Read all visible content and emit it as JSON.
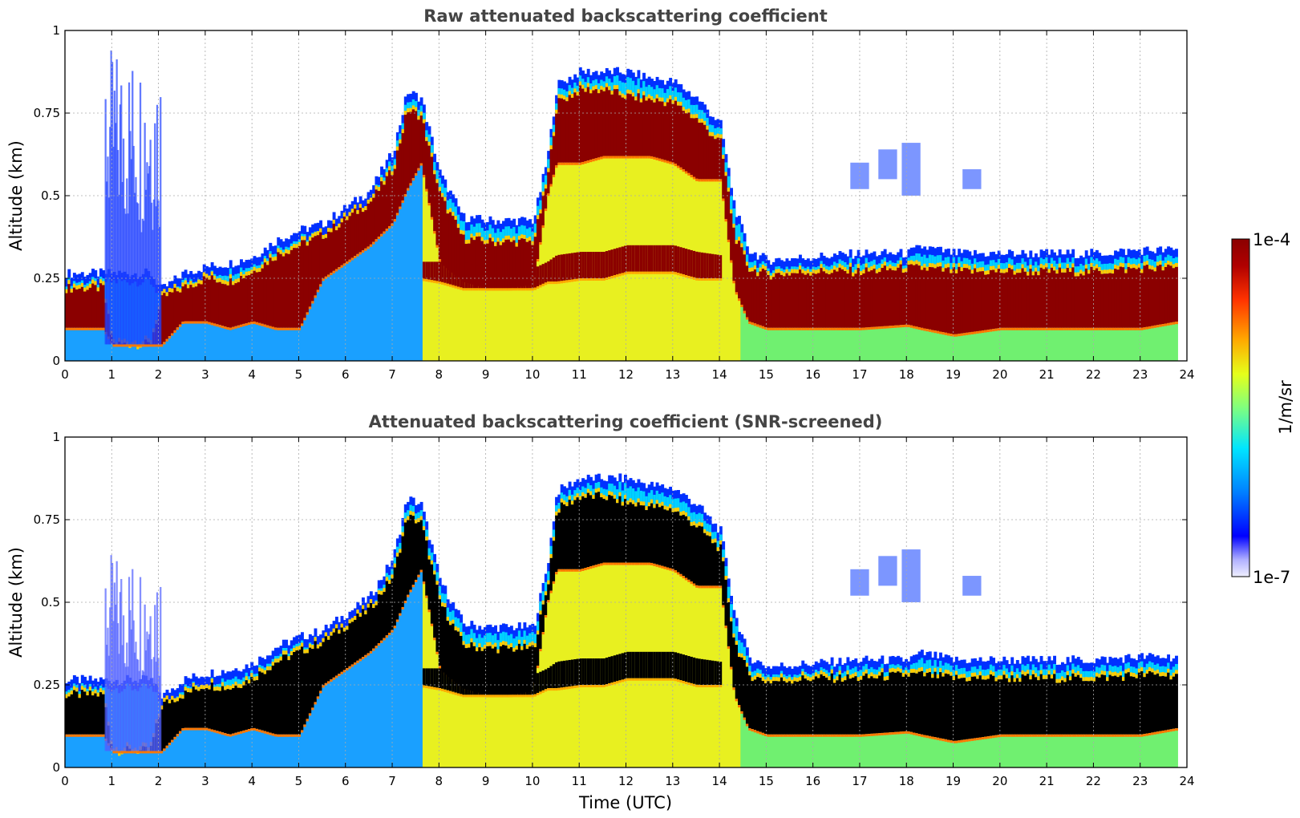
{
  "chart_data": [
    {
      "type": "heatmap",
      "title": "Raw attenuated backscattering coefficient",
      "xlabel": "",
      "ylabel": "Altitude (km)",
      "xlim": [
        0,
        24
      ],
      "ylim": [
        0,
        1
      ],
      "xticks": [
        "0",
        "1",
        "2",
        "3",
        "4",
        "5",
        "6",
        "7",
        "8",
        "9",
        "10",
        "11",
        "12",
        "13",
        "14",
        "15",
        "16",
        "17",
        "18",
        "19",
        "20",
        "21",
        "22",
        "23",
        "24"
      ],
      "yticks": [
        "0",
        "0.25",
        "0.5",
        "0.75",
        "1"
      ],
      "grid": true,
      "screened": false,
      "layer_profile": {
        "time_utc": [
          0,
          0.8,
          1.0,
          1.8,
          2.05,
          2.5,
          3,
          3.5,
          4,
          4.5,
          5,
          5.5,
          6,
          6.5,
          7,
          7.3,
          7.6,
          8,
          8.5,
          9,
          9.5,
          10,
          10.3,
          10.5,
          11,
          11.5,
          12,
          12.5,
          13,
          13.5,
          14,
          14.3,
          14.6,
          15,
          16,
          17,
          18,
          18.3,
          19,
          20,
          21,
          22,
          23,
          23.8
        ],
        "cloud_top_km": [
          0.25,
          0.25,
          0.25,
          0.25,
          0.2,
          0.25,
          0.27,
          0.28,
          0.3,
          0.35,
          0.38,
          0.4,
          0.45,
          0.5,
          0.62,
          0.8,
          0.78,
          0.55,
          0.42,
          0.41,
          0.41,
          0.41,
          0.6,
          0.82,
          0.86,
          0.86,
          0.86,
          0.84,
          0.83,
          0.78,
          0.7,
          0.45,
          0.32,
          0.29,
          0.3,
          0.31,
          0.31,
          0.33,
          0.31,
          0.31,
          0.31,
          0.31,
          0.32,
          0.32
        ],
        "dense_layer_top_km": [
          0.22,
          0.22,
          0.05,
          0.05,
          0.19,
          0.22,
          0.25,
          0.24,
          0.27,
          0.32,
          0.35,
          0.38,
          0.43,
          0.48,
          0.58,
          0.76,
          0.74,
          0.5,
          0.37,
          0.36,
          0.36,
          0.36,
          0.55,
          0.78,
          0.82,
          0.82,
          0.8,
          0.79,
          0.78,
          0.73,
          0.66,
          0.38,
          0.28,
          0.26,
          0.27,
          0.27,
          0.28,
          0.28,
          0.27,
          0.27,
          0.27,
          0.27,
          0.28,
          0.28
        ],
        "dense_layer_base_km": [
          0.1,
          0.1,
          0.05,
          0.05,
          0.05,
          0.12,
          0.12,
          0.1,
          0.12,
          0.1,
          0.1,
          0.25,
          0.3,
          0.35,
          0.42,
          0.52,
          0.6,
          0.3,
          0.24,
          0.22,
          0.22,
          0.23,
          0.5,
          0.6,
          0.6,
          0.62,
          0.62,
          0.62,
          0.6,
          0.55,
          0.55,
          0.22,
          0.12,
          0.1,
          0.1,
          0.1,
          0.11,
          0.1,
          0.08,
          0.1,
          0.1,
          0.1,
          0.1,
          0.12
        ],
        "lower_dense_band_top_km": [
          null,
          null,
          null,
          null,
          null,
          null,
          null,
          null,
          null,
          null,
          null,
          null,
          null,
          null,
          null,
          null,
          0.3,
          0.3,
          0.3,
          0.28,
          0.28,
          0.28,
          0.3,
          0.32,
          0.33,
          0.33,
          0.35,
          0.35,
          0.35,
          0.33,
          0.32,
          null,
          null,
          null,
          null,
          null,
          null,
          null,
          null,
          null,
          null,
          null,
          null,
          null
        ],
        "lower_dense_band_base_km": [
          null,
          null,
          null,
          null,
          null,
          null,
          null,
          null,
          null,
          null,
          null,
          null,
          null,
          null,
          null,
          null,
          0.25,
          0.24,
          0.22,
          0.22,
          0.22,
          0.22,
          0.24,
          0.24,
          0.25,
          0.25,
          0.27,
          0.27,
          0.27,
          0.25,
          0.25,
          null,
          null,
          null,
          null,
          null,
          null,
          null,
          null,
          null,
          null,
          null,
          null,
          null
        ]
      }
    },
    {
      "type": "heatmap",
      "title": "Attenuated backscattering coefficient (SNR-screened)",
      "xlabel": "Time (UTC)",
      "ylabel": "Altitude (km)",
      "xlim": [
        0,
        24
      ],
      "ylim": [
        0,
        1
      ],
      "xticks": [
        "0",
        "1",
        "2",
        "3",
        "4",
        "5",
        "6",
        "7",
        "8",
        "9",
        "10",
        "11",
        "12",
        "13",
        "14",
        "15",
        "16",
        "17",
        "18",
        "19",
        "20",
        "21",
        "22",
        "23",
        "24"
      ],
      "yticks": [
        "0",
        "0.25",
        "0.5",
        "0.75",
        "1"
      ],
      "grid": true,
      "screened": true
    }
  ],
  "colorbar": {
    "min_label": "1e-7",
    "max_label": "1e-4",
    "unit": "1/m/sr",
    "scale": "log",
    "colors": [
      "#e6e6fa",
      "#0000ff",
      "#0080ff",
      "#00e5ff",
      "#7fff7f",
      "#e5ff1a",
      "#ffaa00",
      "#ff3300",
      "#8b0000"
    ]
  }
}
